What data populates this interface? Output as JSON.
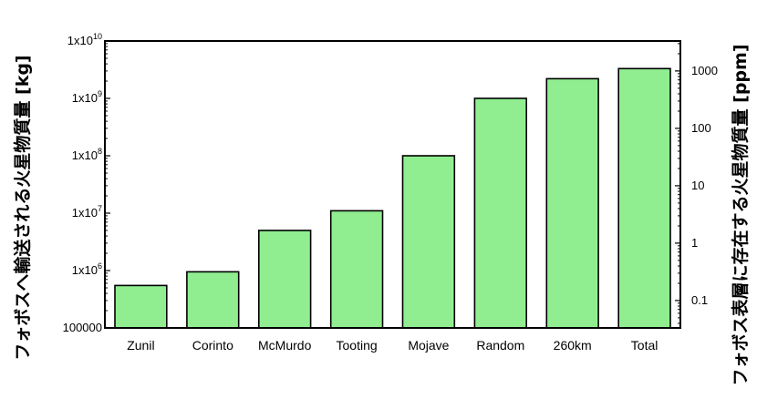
{
  "chart_data": {
    "type": "bar",
    "categories": [
      "Zunil",
      "Corinto",
      "McMurdo",
      "Tooting",
      "Mojave",
      "Random",
      "260km",
      "Total"
    ],
    "values": [
      550000,
      950000,
      5000000,
      11000000,
      100000000,
      1000000000,
      2200000000,
      3300000000
    ],
    "ylabel": "フォボスへ輸送される火星物質量 [kg]",
    "ylabel_right": "フォボス表層に存在する火星物質量 [ppm]",
    "yscale": "log",
    "ylim": [
      100000,
      10000000000
    ],
    "y_ticks": [
      {
        "value": 100000,
        "label": "100000",
        "base": "",
        "exp": ""
      },
      {
        "value": 1000000,
        "label": "",
        "base": "1x10",
        "exp": "6"
      },
      {
        "value": 10000000,
        "label": "",
        "base": "1x10",
        "exp": "7"
      },
      {
        "value": 100000000,
        "label": "",
        "base": "1x10",
        "exp": "8"
      },
      {
        "value": 1000000000,
        "label": "",
        "base": "1x10",
        "exp": "9"
      },
      {
        "value": 10000000000,
        "label": "",
        "base": "1x10",
        "exp": "10"
      }
    ],
    "y2_scale": "log",
    "y2_ticks": [
      {
        "value": 0.1,
        "label": "0.1"
      },
      {
        "value": 1,
        "label": "1"
      },
      {
        "value": 10,
        "label": "10"
      },
      {
        "value": 100,
        "label": "100"
      },
      {
        "value": 1000,
        "label": "1000"
      }
    ],
    "y2_per_kg": 3.333e-07,
    "bar_color": "#90ee90",
    "bar_edge_color": "#000000",
    "grid": false
  }
}
